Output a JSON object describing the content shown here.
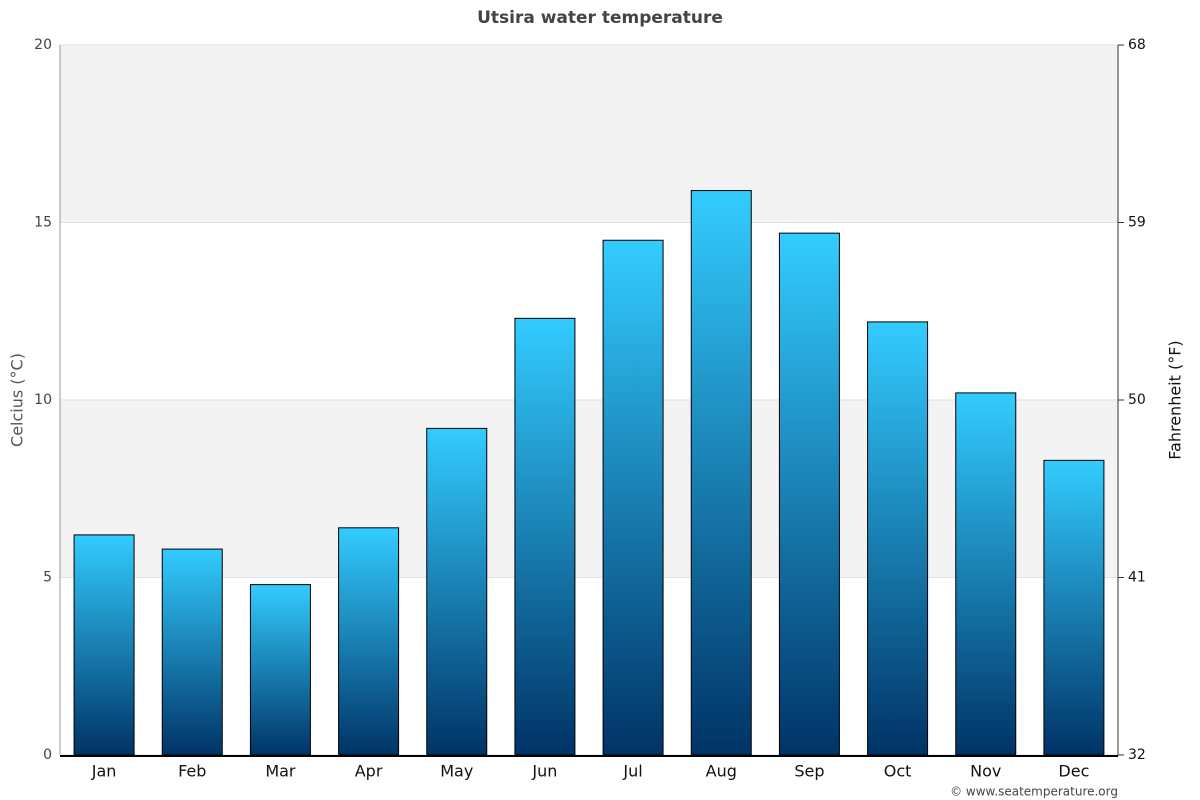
{
  "chart_data": {
    "type": "bar",
    "title": "Utsira water temperature",
    "y_label": "Celcius (°C)",
    "y2_label": "Fahrenheit (°F)",
    "credit": "© www.seatemperature.org",
    "categories": [
      "Jan",
      "Feb",
      "Mar",
      "Apr",
      "May",
      "Jun",
      "Jul",
      "Aug",
      "Sep",
      "Oct",
      "Nov",
      "Dec"
    ],
    "values": [
      6.2,
      5.8,
      4.8,
      6.4,
      9.2,
      12.3,
      14.5,
      15.9,
      14.7,
      12.2,
      10.2,
      8.3
    ],
    "gradient": [
      "#33ccff",
      "#003366"
    ],
    "ylim": [
      0,
      20
    ],
    "yticks": [
      0,
      5,
      10,
      15,
      20
    ],
    "y2lim": [
      32,
      68
    ],
    "y2ticks": [
      32,
      41,
      50,
      59,
      68
    ],
    "band_color": "#f3f3f3",
    "grid": true
  }
}
